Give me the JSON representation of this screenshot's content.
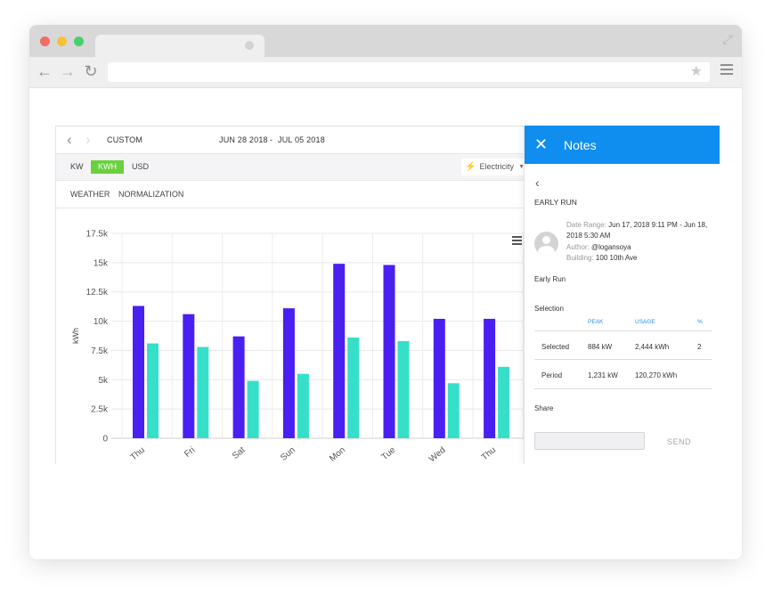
{
  "browser": {
    "nav_back_icon": "arrow-left-icon",
    "nav_forward_icon": "arrow-right-icon",
    "reload_icon": "reload-icon"
  },
  "app": {
    "range_type": "CUSTOM",
    "date_start": "JUN 28 2018",
    "date_separator": "-",
    "date_end": "JUL 05 2018",
    "units": [
      "KW",
      "KWH",
      "USD"
    ],
    "active_unit": "KWH",
    "commodity": "Electricity",
    "filters": [
      "WEATHER",
      "NORMALIZATION"
    ]
  },
  "chart_data": {
    "type": "bar",
    "ylabel": "kWh",
    "ylim": [
      0,
      17500
    ],
    "yticks": [
      "0",
      "2.5k",
      "5k",
      "7.5k",
      "10k",
      "12.5k",
      "15k",
      "17.5k"
    ],
    "categories": [
      "Thu",
      "Fri",
      "Sat",
      "Sun",
      "Mon",
      "Tue",
      "Wed",
      "Thu"
    ],
    "series": [
      {
        "color": "#4a1ff2",
        "values": [
          11300,
          10600,
          8700,
          11100,
          14900,
          14800,
          10200,
          10200
        ]
      },
      {
        "color": "#36e0c8",
        "values": [
          8100,
          7800,
          4900,
          5500,
          8600,
          8300,
          4700,
          6100
        ]
      }
    ],
    "grid": true
  },
  "notes": {
    "title": "Notes",
    "note_title": "EARLY RUN",
    "date_range_label": "Date Range:",
    "date_range_value": "Jun 17, 2018 9:11 PM - Jun 18, 2018 5:30 AM",
    "author_label": "Author:",
    "author_value": "@logansoya",
    "building_label": "Building:",
    "building_value": "100 10th Ave",
    "body": "Early Run",
    "selection_heading": "Selection",
    "table": {
      "headers": [
        "PEAK",
        "USAGE",
        "%"
      ],
      "rows": [
        {
          "label": "Selected",
          "peak": "884 kW",
          "usage": "2,444 kWh",
          "pct": "2"
        },
        {
          "label": "Period",
          "peak": "1,231 kW",
          "usage": "120,270 kWh",
          "pct": ""
        }
      ]
    },
    "share_heading": "Share",
    "send_label": "SEND"
  }
}
